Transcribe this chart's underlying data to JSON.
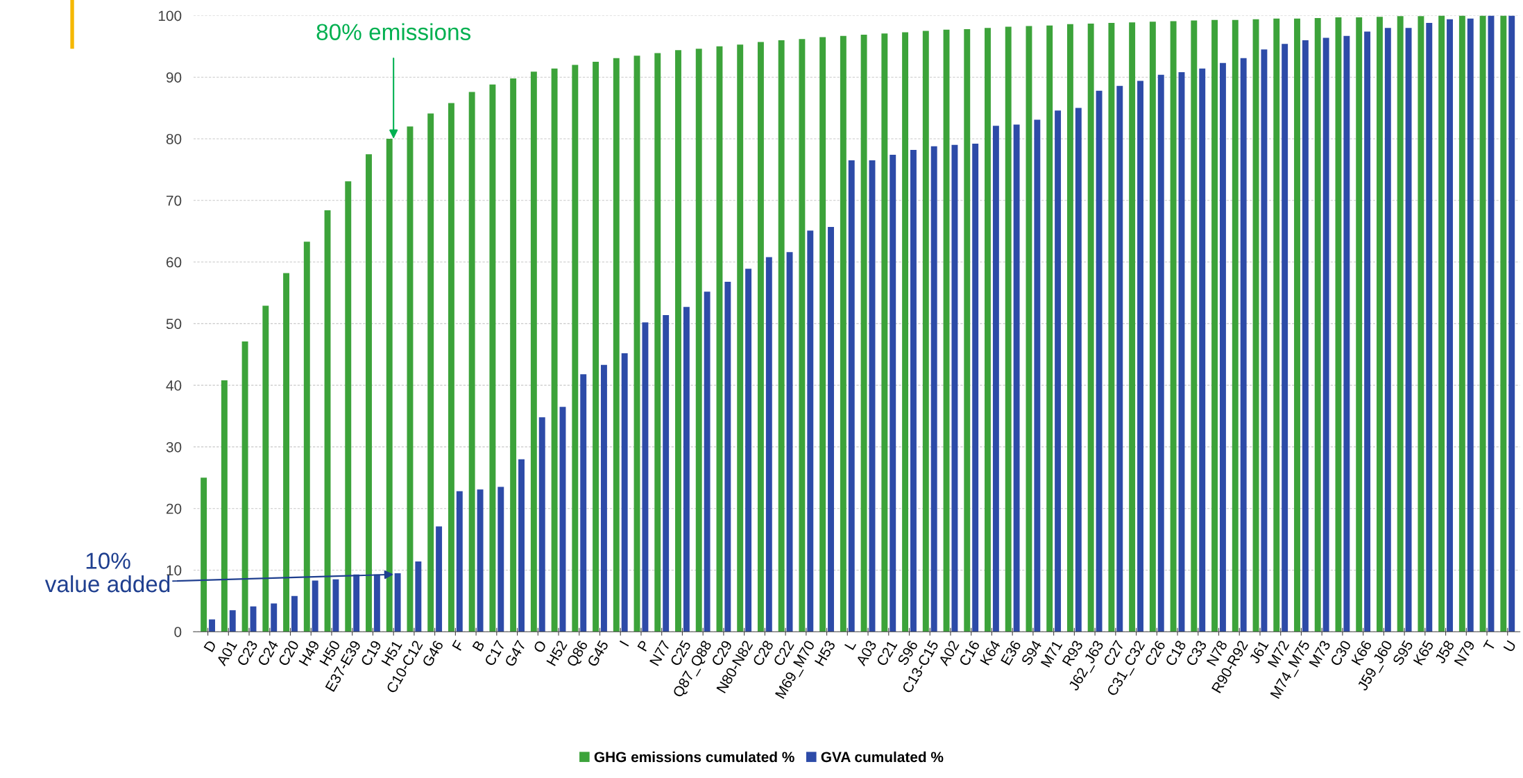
{
  "chart_data": {
    "type": "bar",
    "categories": [
      "D",
      "A01",
      "C23",
      "C24",
      "C20",
      "H49",
      "H50",
      "E37-E39",
      "C19",
      "H51",
      "C10-C12",
      "G46",
      "F",
      "B",
      "C17",
      "G47",
      "O",
      "H52",
      "Q86",
      "G45",
      "I",
      "P",
      "N77",
      "C25",
      "Q87_Q88",
      "C29",
      "N80-N82",
      "C28",
      "C22",
      "M69_M70",
      "H53",
      "L",
      "A03",
      "C21",
      "S96",
      "C13-C15",
      "A02",
      "C16",
      "K64",
      "E36",
      "S94",
      "M71",
      "R93",
      "J62_J63",
      "C27",
      "C31_C32",
      "C26",
      "C18",
      "C33",
      "N78",
      "R90-R92",
      "J61",
      "M72",
      "M74_M75",
      "M73",
      "C30",
      "K66",
      "J59_J60",
      "S95",
      "K65",
      "J58",
      "N79",
      "T",
      "U"
    ],
    "series": [
      {
        "name": "GHG emissions cumulated %",
        "color": "#3ca33a",
        "values": [
          25,
          40.8,
          47.1,
          52.9,
          58.2,
          63.3,
          68.4,
          73.1,
          77.5,
          80,
          82,
          84.1,
          85.8,
          87.6,
          88.8,
          89.8,
          90.9,
          91.4,
          92,
          92.5,
          93.1,
          93.5,
          93.9,
          94.4,
          94.6,
          95.0,
          95.3,
          95.7,
          96.0,
          96.2,
          96.5,
          96.7,
          96.9,
          97.1,
          97.3,
          97.5,
          97.7,
          97.8,
          98.0,
          98.2,
          98.3,
          98.4,
          98.6,
          98.7,
          98.8,
          98.9,
          99.0,
          99.1,
          99.2,
          99.3,
          99.3,
          99.4,
          99.5,
          99.5,
          99.6,
          99.7,
          99.7,
          99.8,
          99.9,
          99.9,
          100,
          100,
          100,
          100
        ]
      },
      {
        "name": "GVA cumulated %",
        "color": "#2d4ba8",
        "values": [
          2,
          3.5,
          4.1,
          4.6,
          5.8,
          8.3,
          8.5,
          9.3,
          9.3,
          9.5,
          11.4,
          17.1,
          22.8,
          23.1,
          23.5,
          28.0,
          34.8,
          36.5,
          41.8,
          43.3,
          45.2,
          50.2,
          51.4,
          52.7,
          55.2,
          56.8,
          58.9,
          60.8,
          61.6,
          65.1,
          65.7,
          76.5,
          76.5,
          77.4,
          78.2,
          78.8,
          79.0,
          79.2,
          82.1,
          82.3,
          83.1,
          84.6,
          85.0,
          87.8,
          88.6,
          89.4,
          90.4,
          90.8,
          91.4,
          92.3,
          93.1,
          94.5,
          95.4,
          96.0,
          96.4,
          96.7,
          97.4,
          98.0,
          98.0,
          98.8,
          99.4,
          99.5,
          100,
          100
        ]
      }
    ],
    "ylim": [
      0,
      100
    ],
    "yticks": [
      0,
      10,
      20,
      30,
      40,
      50,
      60,
      70,
      80,
      90,
      100
    ],
    "grid": "y",
    "legend": "bottom",
    "annotations": [
      {
        "text": "80% emissions",
        "x": "H51",
        "y": 80
      },
      {
        "text": "10%\nvalue added",
        "x": "H51",
        "y": 9.3
      }
    ]
  }
}
